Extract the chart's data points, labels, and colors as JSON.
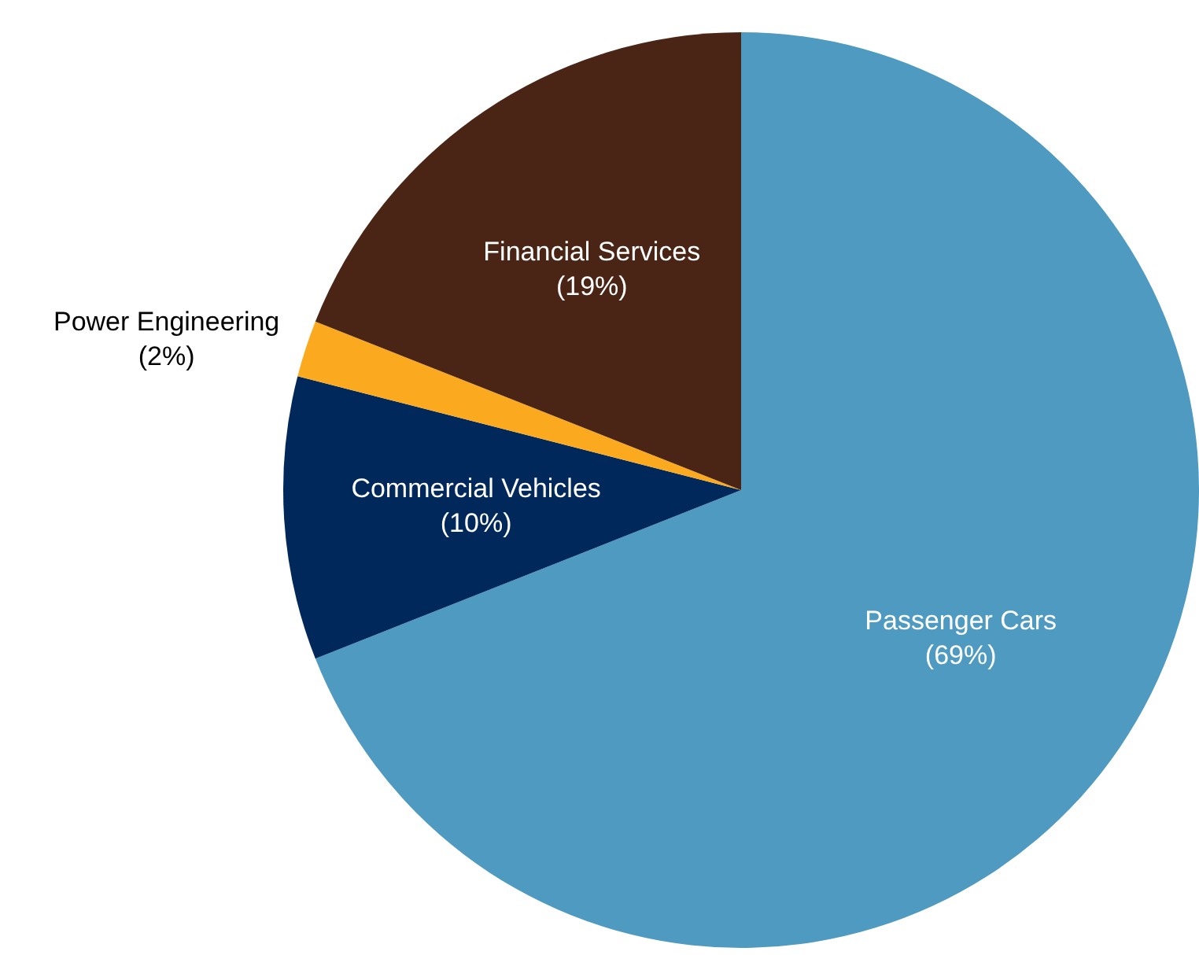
{
  "chart_data": {
    "type": "pie",
    "categories": [
      "Passenger Cars",
      "Commercial Vehicles",
      "Power Engineering",
      "Financial Services"
    ],
    "values": [
      69,
      10,
      2,
      19
    ],
    "colors": [
      "#4f9ac1",
      "#00285a",
      "#fbaa1f",
      "#4a2515"
    ],
    "value_labels": [
      "(69%)",
      "(10%)",
      "(2%)",
      "(19%)"
    ]
  }
}
